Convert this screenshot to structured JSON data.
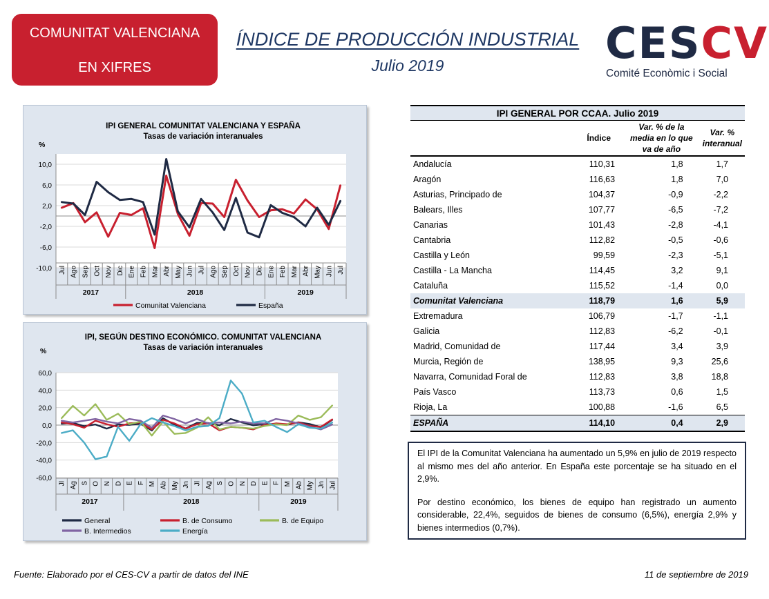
{
  "badge": {
    "line1": "COMUNITAT VALENCIANA",
    "line2": "EN XIFRES"
  },
  "header": {
    "title": "ÍNDICE DE PRODUCCIÓN INDUSTRIAL",
    "subtitle": "Julio 2019"
  },
  "logo": {
    "wordmark_ces": "CES",
    "wordmark_cv": "CV",
    "tagline": "Comité Econòmic i Social"
  },
  "colors": {
    "red": "#c8202f",
    "navy": "#1f2a44",
    "green": "#9bbb59",
    "purple": "#8064a2",
    "cyan": "#4bacc6",
    "panel": "#dfe6ef"
  },
  "chart_data": [
    {
      "type": "line",
      "title": "IPI GENERAL COMUNITAT VALENCIANA Y ESPAÑA",
      "subtitle": "Tasas de variación interanuales",
      "ylabel": "%",
      "ylim": [
        -10,
        12
      ],
      "yticks": [
        "10,0",
        "6,0",
        "2,0",
        "-2,0",
        "-6,0",
        "-10,0"
      ],
      "ytick_values": [
        10,
        6,
        2,
        -2,
        -6,
        -10
      ],
      "categories": [
        "Jul",
        "Ago",
        "Sep",
        "Oct",
        "Nov",
        "Dic",
        "Ene",
        "Feb",
        "Mar",
        "Abr",
        "May",
        "Jun",
        "Jul",
        "Ago",
        "Sep",
        "Oct",
        "Nov",
        "Dic",
        "Ene",
        "Feb",
        "Mar",
        "Abr",
        "May",
        "Jun",
        "Jul"
      ],
      "years": [
        {
          "label": "2017",
          "from": 0,
          "to": 5
        },
        {
          "label": "2018",
          "from": 6,
          "to": 17
        },
        {
          "label": "2019",
          "from": 18,
          "to": 24
        }
      ],
      "series": [
        {
          "name": "Comunitat Valenciana",
          "color": "#c8202f",
          "values": [
            1.6,
            2.5,
            -1.2,
            0.7,
            -4.0,
            0.6,
            0.2,
            1.5,
            -6.2,
            7.8,
            0.4,
            -3.8,
            2.5,
            2.4,
            -0.2,
            7.0,
            3.0,
            -0.2,
            1.1,
            1.3,
            0.5,
            3.2,
            1.3,
            -2.5,
            5.9
          ]
        },
        {
          "name": "España",
          "color": "#1f2a44",
          "values": [
            2.7,
            2.4,
            0.2,
            6.6,
            4.6,
            3.1,
            3.3,
            2.7,
            -3.6,
            11.0,
            0.9,
            -2.2,
            3.3,
            0.7,
            -2.7,
            3.5,
            -3.2,
            -4.1,
            2.1,
            0.6,
            -0.2,
            -2.0,
            1.6,
            -1.7,
            2.9
          ]
        }
      ]
    },
    {
      "type": "line",
      "title": "IPI, SEGÚN DESTINO ECONÓMICO. COMUNITAT VALENCIANA",
      "subtitle": "Tasas de variación interanuales",
      "ylabel": "%",
      "ylim": [
        -60,
        60
      ],
      "yticks": [
        "60,0",
        "40,0",
        "20,0",
        "0,0",
        "-20,0",
        "-40,0",
        "-60,0"
      ],
      "ytick_values": [
        60,
        40,
        20,
        0,
        -20,
        -40,
        -60
      ],
      "categories": [
        "Jl",
        "Ag",
        "S",
        "O",
        "N",
        "D",
        "E",
        "F",
        "M",
        "Ab",
        "My",
        "Jn",
        "Jl",
        "Ag",
        "S",
        "O",
        "N",
        "D",
        "E",
        "F",
        "M",
        "Ab",
        "My",
        "Jn",
        "Jul"
      ],
      "years": [
        {
          "label": "2017",
          "from": 0,
          "to": 5
        },
        {
          "label": "2018",
          "from": 6,
          "to": 17
        },
        {
          "label": "2019",
          "from": 18,
          "to": 24
        }
      ],
      "series": [
        {
          "name": "General",
          "color": "#1f2a44",
          "values": [
            1.6,
            2.5,
            -1.2,
            0.7,
            -4.0,
            0.6,
            0.2,
            1.5,
            -6.2,
            7.8,
            0.4,
            -3.8,
            2.5,
            2.4,
            -0.2,
            7.0,
            3.0,
            -0.2,
            1.1,
            1.3,
            0.5,
            3.2,
            1.3,
            -2.5,
            5.9
          ]
        },
        {
          "name": "B. de Consumo",
          "color": "#c8202f",
          "values": [
            3,
            1,
            -3,
            5,
            1,
            -2,
            2,
            3,
            -5,
            6,
            2,
            -4,
            1,
            2,
            -6,
            -2,
            -3,
            -5,
            0,
            2,
            1,
            3,
            -1,
            -2,
            6.5
          ]
        },
        {
          "name": "B. de Equipo",
          "color": "#9bbb59",
          "values": [
            8,
            22,
            11,
            24,
            6,
            13,
            1,
            4,
            -12,
            4,
            -10,
            -9,
            -3,
            9,
            -5,
            -2,
            -3,
            -4,
            -1,
            1,
            0,
            11,
            6,
            9,
            22.4
          ]
        },
        {
          "name": "B. Intermedios",
          "color": "#8064a2",
          "values": [
            5,
            3,
            5,
            7,
            4,
            2,
            7,
            5,
            -3,
            11,
            7,
            2,
            7,
            2,
            3,
            2,
            4,
            2,
            2,
            7,
            5,
            2,
            -2,
            -5,
            0.7
          ]
        },
        {
          "name": "Energía",
          "color": "#4bacc6",
          "values": [
            -9,
            -6,
            -20,
            -39,
            -36,
            -2,
            -18,
            1,
            8,
            3,
            -1,
            -6,
            -2,
            -1,
            8,
            51,
            36,
            3,
            5,
            -2,
            -8,
            1,
            -3,
            -4,
            2.9
          ]
        }
      ]
    },
    {
      "type": "table",
      "title": "IPI GENERAL POR CCAA. Julio 2019",
      "columns": [
        "",
        "Índice",
        "Var. % de la media en lo que va de año",
        "Var. % interanual"
      ],
      "rows": [
        {
          "name": "Andalucía",
          "indice": "110,31",
          "media": "1,8",
          "interanual": "1,7"
        },
        {
          "name": "Aragón",
          "indice": "116,63",
          "media": "1,8",
          "interanual": "7,0"
        },
        {
          "name": "Asturias, Principado de",
          "indice": "104,37",
          "media": "-0,9",
          "interanual": "-2,2"
        },
        {
          "name": "Balears, Illes",
          "indice": "107,77",
          "media": "-6,5",
          "interanual": "-7,2"
        },
        {
          "name": "Canarias",
          "indice": "101,43",
          "media": "-2,8",
          "interanual": "-4,1"
        },
        {
          "name": "Cantabria",
          "indice": "112,82",
          "media": "-0,5",
          "interanual": "-0,6"
        },
        {
          "name": "Castilla y León",
          "indice": "99,59",
          "media": "-2,3",
          "interanual": "-5,1"
        },
        {
          "name": "Castilla - La Mancha",
          "indice": "114,45",
          "media": "3,2",
          "interanual": "9,1"
        },
        {
          "name": "Cataluña",
          "indice": "115,52",
          "media": "-1,4",
          "interanual": "0,0"
        },
        {
          "name": "Comunitat Valenciana",
          "indice": "118,79",
          "media": "1,6",
          "interanual": "5,9",
          "highlight": true
        },
        {
          "name": "Extremadura",
          "indice": "106,79",
          "media": "-1,7",
          "interanual": "-1,1"
        },
        {
          "name": "Galicia",
          "indice": "112,83",
          "media": "-6,2",
          "interanual": "-0,1"
        },
        {
          "name": "Madrid, Comunidad de",
          "indice": "117,44",
          "media": "3,4",
          "interanual": "3,9"
        },
        {
          "name": "Murcia, Región de",
          "indice": "138,95",
          "media": "9,3",
          "interanual": "25,6"
        },
        {
          "name": "Navarra, Comunidad Foral de",
          "indice": "112,83",
          "media": "3,8",
          "interanual": "18,8"
        },
        {
          "name": "País Vasco",
          "indice": "113,73",
          "media": "0,6",
          "interanual": "1,5"
        },
        {
          "name": "Rioja, La",
          "indice": "100,88",
          "media": "-1,6",
          "interanual": "6,5"
        },
        {
          "name": "ESPAÑA",
          "indice": "114,10",
          "media": "0,4",
          "interanual": "2,9",
          "total": true
        }
      ]
    }
  ],
  "table_header": {
    "title": "IPI GENERAL POR CCAA. Julio 2019",
    "col_indice": "Índice",
    "col_media_l1": "Var. % de la",
    "col_media_l2": "media en lo que",
    "col_media_l3": "va de año",
    "col_inter_l1": "Var. %",
    "col_inter_l2": "interanual"
  },
  "note": {
    "p1": "El IPI de la Comunitat Valenciana ha aumentado un 5,9% en julio de 2019 respecto al mismo mes del año anterior. En España este porcentaje se ha situado en el 2,9%.",
    "p2": "Por destino económico, los bienes de equipo han registrado un aumento considerable, 22,4%, seguidos de bienes de consumo (6,5%), energía 2,9% y bienes intermedios (0,7%)."
  },
  "footer": {
    "source": "Fuente: Elaborado por el CES-CV a partir de datos del INE",
    "date": "11 de septiembre de 2019"
  }
}
